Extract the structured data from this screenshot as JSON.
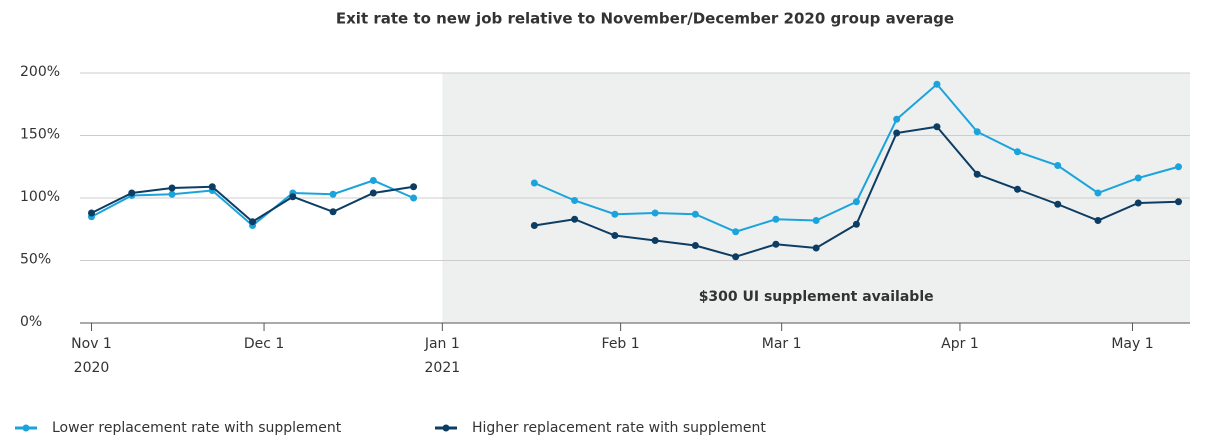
{
  "chart_data": {
    "type": "line",
    "title": "Exit rate to new job relative to November/December 2020 group average",
    "x": [
      "2020-11-01",
      "2020-11-08",
      "2020-11-15",
      "2020-11-22",
      "2020-11-29",
      "2020-12-06",
      "2020-12-13",
      "2020-12-20",
      "2020-12-27",
      "2021-01-03",
      "2021-01-10",
      "2021-01-17",
      "2021-01-24",
      "2021-01-31",
      "2021-02-07",
      "2021-02-14",
      "2021-02-21",
      "2021-02-28",
      "2021-03-07",
      "2021-03-14",
      "2021-03-21",
      "2021-03-28",
      "2021-04-04",
      "2021-04-11",
      "2021-04-18",
      "2021-04-25",
      "2021-05-02",
      "2021-05-09"
    ],
    "series": [
      {
        "name": "Lower replacement rate with supplement",
        "color": "#1ba3dc",
        "values": [
          85,
          102,
          103,
          106,
          78,
          104,
          103,
          114,
          100,
          null,
          null,
          112,
          98,
          87,
          88,
          87,
          73,
          83,
          82,
          97,
          163,
          191,
          153,
          137,
          126,
          104,
          116,
          125
        ]
      },
      {
        "name": "Higher replacement rate with supplement",
        "color": "#0d3d63",
        "values": [
          88,
          104,
          108,
          109,
          81,
          101,
          89,
          104,
          109,
          null,
          null,
          78,
          83,
          70,
          66,
          62,
          53,
          63,
          60,
          79,
          152,
          157,
          119,
          107,
          95,
          82,
          96,
          97
        ]
      }
    ],
    "xlim": [
      "2020-10-30",
      "2021-05-11"
    ],
    "xticks": [
      {
        "value": "2020-11-01",
        "label": "Nov 1",
        "year": "2020"
      },
      {
        "value": "2020-12-01",
        "label": "Dec 1"
      },
      {
        "value": "2021-01-01",
        "label": "Jan 1",
        "year": "2021"
      },
      {
        "value": "2021-02-01",
        "label": "Feb 1"
      },
      {
        "value": "2021-03-01",
        "label": "Mar 1"
      },
      {
        "value": "2021-04-01",
        "label": "Apr 1"
      },
      {
        "value": "2021-05-01",
        "label": "May 1"
      }
    ],
    "ylim": [
      0,
      200
    ],
    "yticks": [
      {
        "value": 0,
        "label": "0%"
      },
      {
        "value": 50,
        "label": "50%"
      },
      {
        "value": 100,
        "label": "100%"
      },
      {
        "value": 150,
        "label": "150%"
      },
      {
        "value": 200,
        "label": "200%"
      }
    ],
    "grid": true,
    "shaded_region": {
      "start": "2021-01-01",
      "label": "$300 UI supplement available",
      "color": "#eef0f0"
    },
    "legend": "bottom"
  }
}
